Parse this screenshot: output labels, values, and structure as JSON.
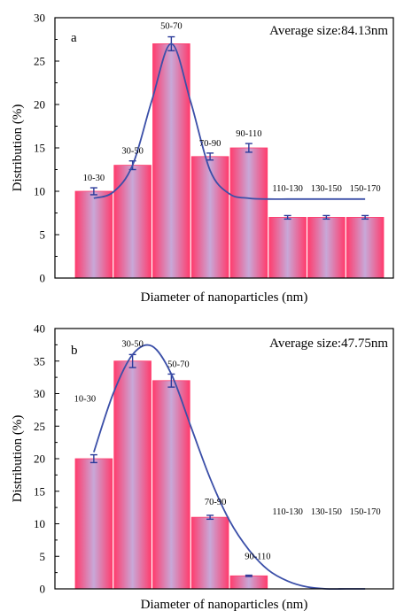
{
  "chart_data": [
    {
      "type": "bar",
      "panel_label": "a",
      "annotation": "Average size:84.13nm",
      "xlabel": "Diameter of nanoparticles (nm)",
      "ylabel": "Distribution (%)",
      "ylim": [
        0,
        30
      ],
      "yticks": [
        0,
        5,
        10,
        15,
        20,
        25,
        30
      ],
      "categories": [
        "10-30",
        "30-50",
        "50-70",
        "70-90",
        "90-110",
        "110-130",
        "130-150",
        "150-170"
      ],
      "values": [
        10,
        13,
        27,
        14,
        15,
        7,
        7,
        7
      ],
      "errors": [
        0.4,
        0.5,
        0.8,
        0.4,
        0.5,
        0.2,
        0.2,
        0.2
      ],
      "fit_curve": {
        "x": [
          0,
          0.5,
          1,
          1.5,
          2,
          2.5,
          3,
          3.5,
          4,
          4.5,
          5,
          5.5,
          6,
          6.5,
          7
        ],
        "y": [
          9.2,
          9.9,
          13.0,
          20.5,
          27.0,
          20.3,
          12.4,
          9.7,
          9.2,
          9.1,
          9.1,
          9.1,
          9.1,
          9.1,
          9.1
        ]
      },
      "legend": "none",
      "grid": false
    },
    {
      "type": "bar",
      "panel_label": "b",
      "annotation": "Average size:47.75nm",
      "xlabel": "Diameter of nanoparticles (nm)",
      "ylabel": "Distribution (%)",
      "ylim": [
        0,
        40
      ],
      "yticks": [
        0,
        5,
        10,
        15,
        20,
        25,
        30,
        35,
        40
      ],
      "categories": [
        "10-30",
        "30-50",
        "50-70",
        "70-90",
        "90-110",
        "110-130",
        "130-150",
        "150-170"
      ],
      "values": [
        20,
        35,
        32,
        11,
        2,
        0,
        0,
        0
      ],
      "errors": [
        0.6,
        1.0,
        1.0,
        0.3,
        0.1,
        0,
        0,
        0
      ],
      "fit_curve": {
        "x": [
          0,
          0.5,
          1,
          1.5,
          2,
          2.5,
          3,
          3.5,
          4,
          4.5,
          5,
          5.5,
          6,
          6.5,
          7
        ],
        "y": [
          21.0,
          30.0,
          36.0,
          37.3,
          33.0,
          25.0,
          17.0,
          10.5,
          6.0,
          2.9,
          1.2,
          0.3,
          0,
          0,
          0
        ]
      },
      "legend": "none",
      "grid": false
    }
  ],
  "colors": {
    "bar_edge": "#ff3d6e",
    "bar_center": "#c8a8d8",
    "curve": "#3b4fa8",
    "error_bar": "#2b3a9a",
    "axis": "#000000"
  }
}
